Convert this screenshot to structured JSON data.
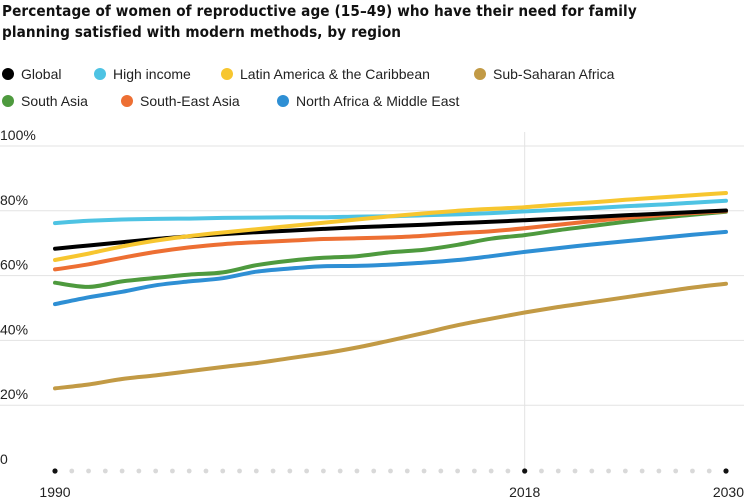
{
  "chart_data": {
    "type": "line",
    "title": "Percentage of women of reproductive age (15–49) who have their need for family planning satisfied with modern methods, by region",
    "xlabel": "",
    "ylabel": "",
    "xlim": [
      1990,
      2030
    ],
    "ylim": [
      0,
      100
    ],
    "y_ticks": [
      0,
      20,
      40,
      60,
      80,
      100
    ],
    "y_tick_labels": [
      "0",
      "20%",
      "40%",
      "60%",
      "80%",
      "100%"
    ],
    "x_ticks": [
      1990,
      2018,
      2030
    ],
    "x_tick_labels": [
      "1990",
      "2018",
      "2030"
    ],
    "grid": "horizontal",
    "legend_position": "top",
    "x": [
      1990,
      1992,
      1994,
      1996,
      1998,
      2000,
      2002,
      2004,
      2006,
      2008,
      2010,
      2012,
      2014,
      2016,
      2018,
      2020,
      2022,
      2024,
      2026,
      2028,
      2030
    ],
    "series": [
      {
        "name": "Global",
        "color": "#000000",
        "values": [
          68.3,
          69.3,
          70.3,
          71.3,
          72.1,
          72.8,
          73.4,
          73.9,
          74.4,
          74.9,
          75.3,
          75.7,
          76.2,
          76.6,
          77.1,
          77.6,
          78.1,
          78.6,
          79.1,
          79.6,
          80.1
        ]
      },
      {
        "name": "High income",
        "color": "#4ec3e3",
        "values": [
          76.2,
          76.9,
          77.3,
          77.5,
          77.6,
          77.8,
          77.9,
          78.0,
          78.0,
          78.2,
          78.3,
          78.6,
          78.9,
          79.3,
          79.8,
          80.3,
          80.8,
          81.4,
          81.9,
          82.5,
          83.1
        ]
      },
      {
        "name": "Latin America & the Caribbean",
        "color": "#f7c62f",
        "values": [
          64.8,
          66.8,
          69.0,
          70.8,
          72.2,
          73.3,
          74.3,
          75.3,
          76.3,
          77.3,
          78.3,
          79.2,
          80.0,
          80.6,
          81.1,
          81.9,
          82.6,
          83.4,
          84.1,
          84.8,
          85.5
        ]
      },
      {
        "name": "Sub-Saharan Africa",
        "color": "#c29a45",
        "values": [
          25.2,
          26.4,
          28.1,
          29.2,
          30.5,
          31.8,
          33.0,
          34.5,
          36.0,
          37.8,
          40.0,
          42.3,
          44.7,
          46.7,
          48.6,
          50.3,
          51.8,
          53.3,
          54.8,
          56.3,
          57.5
        ]
      },
      {
        "name": "South Asia",
        "color": "#4e9a3e",
        "values": [
          57.8,
          56.5,
          58.2,
          59.3,
          60.3,
          61.0,
          63.2,
          64.6,
          65.5,
          66.0,
          67.2,
          68.0,
          69.5,
          71.4,
          72.5,
          74.0,
          75.3,
          76.6,
          77.8,
          78.8,
          79.7
        ]
      },
      {
        "name": "South-East Asia",
        "color": "#ed6f33",
        "values": [
          61.9,
          63.5,
          65.5,
          67.3,
          68.7,
          69.7,
          70.3,
          70.8,
          71.3,
          71.5,
          71.8,
          72.3,
          73.1,
          73.7,
          74.6,
          75.7,
          76.8,
          77.8,
          78.6,
          79.3,
          79.9
        ]
      },
      {
        "name": "North Africa & Middle East",
        "color": "#2e8fd4",
        "values": [
          51.2,
          53.3,
          55.0,
          57.0,
          58.2,
          59.2,
          61.2,
          62.2,
          62.9,
          63.0,
          63.4,
          64.0,
          64.8,
          66.0,
          67.3,
          68.5,
          69.6,
          70.6,
          71.6,
          72.6,
          73.5
        ]
      }
    ]
  }
}
